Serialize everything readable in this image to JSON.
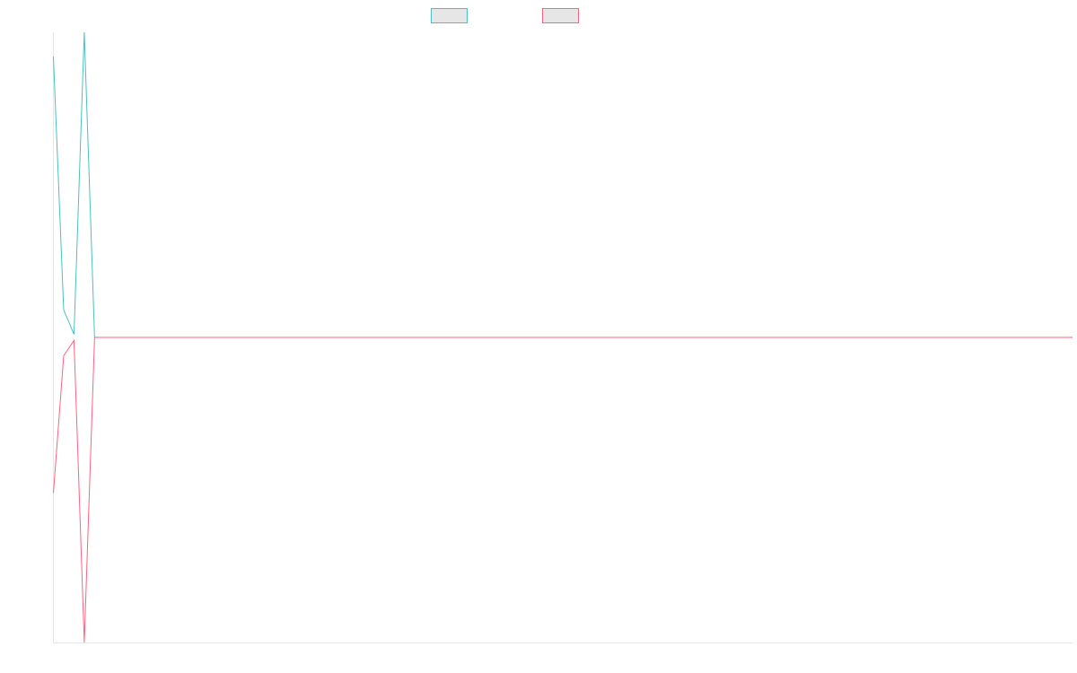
{
  "chart_data": {
    "type": "line",
    "title": "",
    "xlabel": "",
    "ylabel": "",
    "legend_position": "top-center",
    "grid": false,
    "x": [
      0,
      1,
      2,
      3,
      4,
      5,
      6,
      7,
      8,
      9,
      10,
      11,
      12,
      13,
      14,
      15,
      16,
      17,
      18,
      19,
      20,
      21,
      22,
      23,
      24,
      25,
      26,
      27,
      28,
      29,
      30,
      31,
      32,
      33,
      34,
      35,
      36,
      37,
      38,
      39,
      40,
      41,
      42,
      43,
      44,
      45,
      46,
      47,
      48,
      49,
      50,
      51,
      52,
      53,
      54,
      55,
      56,
      57,
      58,
      59,
      60,
      61,
      62,
      63,
      64,
      65,
      66,
      67,
      68,
      69,
      70,
      71,
      72,
      73,
      74,
      75,
      76,
      77,
      78,
      79,
      80,
      81,
      82,
      83,
      84,
      85,
      86,
      87,
      88,
      89,
      90,
      91,
      92,
      93,
      94,
      95,
      96,
      97,
      98,
      99
    ],
    "xlim": [
      0,
      99
    ],
    "ylim": [
      -1,
      1
    ],
    "series": [
      {
        "name": "",
        "color": "#4bc0c0",
        "values": [
          0.92,
          0.09,
          0.01,
          1.0,
          0,
          0,
          0,
          0,
          0,
          0,
          0,
          0,
          0,
          0,
          0,
          0,
          0,
          0,
          0,
          0,
          0,
          0,
          0,
          0,
          0,
          0,
          0,
          0,
          0,
          0,
          0,
          0,
          0,
          0,
          0,
          0,
          0,
          0,
          0,
          0,
          0,
          0,
          0,
          0,
          0,
          0,
          0,
          0,
          0,
          0,
          0,
          0,
          0,
          0,
          0,
          0,
          0,
          0,
          0,
          0,
          0,
          0,
          0,
          0,
          0,
          0,
          0,
          0,
          0,
          0,
          0,
          0,
          0,
          0,
          0,
          0,
          0,
          0,
          0,
          0,
          0,
          0,
          0,
          0,
          0,
          0,
          0,
          0,
          0,
          0,
          0,
          0,
          0,
          0,
          0,
          0,
          0,
          0,
          0,
          0
        ]
      },
      {
        "name": "",
        "color": "#ff6384",
        "values": [
          -0.51,
          -0.06,
          -0.01,
          -1.0,
          0,
          0,
          0,
          0,
          0,
          0,
          0,
          0,
          0,
          0,
          0,
          0,
          0,
          0,
          0,
          0,
          0,
          0,
          0,
          0,
          0,
          0,
          0,
          0,
          0,
          0,
          0,
          0,
          0,
          0,
          0,
          0,
          0,
          0,
          0,
          0,
          0,
          0,
          0,
          0,
          0,
          0,
          0,
          0,
          0,
          0,
          0,
          0,
          0,
          0,
          0,
          0,
          0,
          0,
          0,
          0,
          0,
          0,
          0,
          0,
          0,
          0,
          0,
          0,
          0,
          0,
          0,
          0,
          0,
          0,
          0,
          0,
          0,
          0,
          0,
          0,
          0,
          0,
          0,
          0,
          0,
          0,
          0,
          0,
          0,
          0,
          0,
          0,
          0,
          0,
          0,
          0,
          0,
          0,
          0,
          0
        ]
      }
    ]
  }
}
